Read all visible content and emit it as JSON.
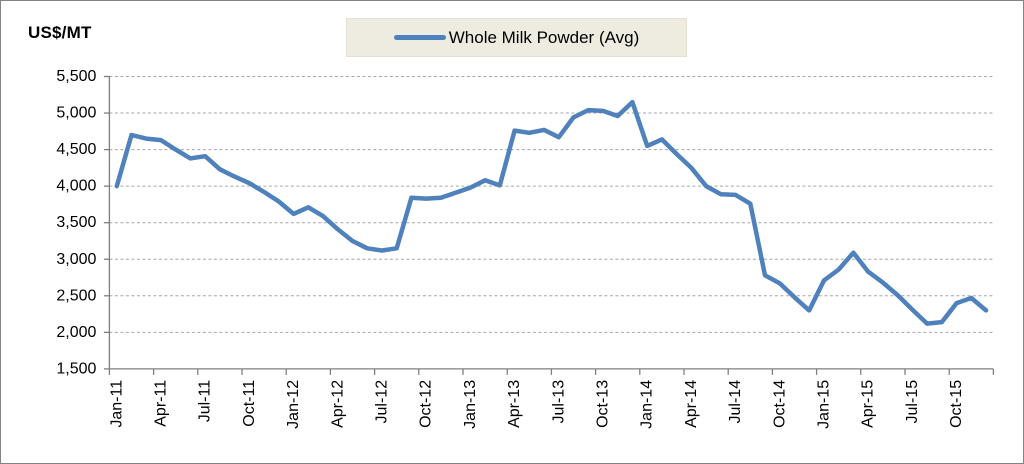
{
  "header": {
    "units_label": "US$/MT"
  },
  "legend": {
    "label": "Whole Milk Powder (Avg)"
  },
  "colors": {
    "series_line": "#4f81bd",
    "legend_bg": "#eeece1",
    "gridline": "#a6a6a6",
    "axis": "#7f7f7f",
    "text": "#000000",
    "frame_border": "#848484"
  },
  "chart_data": {
    "type": "line",
    "title": "",
    "ylabel": "US$/MT",
    "xlabel": "",
    "grid": "horizontal-dashed",
    "legend_position": "top-center",
    "categories": [
      "Jan-11",
      "Feb-11",
      "Mar-11",
      "Apr-11",
      "May-11",
      "Jun-11",
      "Jul-11",
      "Aug-11",
      "Sep-11",
      "Oct-11",
      "Nov-11",
      "Dec-11",
      "Jan-12",
      "Feb-12",
      "Mar-12",
      "Apr-12",
      "May-12",
      "Jun-12",
      "Jul-12",
      "Aug-12",
      "Sep-12",
      "Oct-12",
      "Nov-12",
      "Dec-12",
      "Jan-13",
      "Feb-13",
      "Mar-13",
      "Apr-13",
      "May-13",
      "Jun-13",
      "Jul-13",
      "Aug-13",
      "Sep-13",
      "Oct-13",
      "Nov-13",
      "Dec-13",
      "Jan-14",
      "Feb-14",
      "Mar-14",
      "Apr-14",
      "May-14",
      "Jun-14",
      "Jul-14",
      "Aug-14",
      "Sep-14",
      "Oct-14",
      "Nov-14",
      "Dec-14",
      "Jan-15",
      "Feb-15",
      "Mar-15",
      "Apr-15",
      "May-15",
      "Jun-15",
      "Jul-15",
      "Aug-15",
      "Sep-15",
      "Oct-15",
      "Nov-15",
      "Dec-15"
    ],
    "series": [
      {
        "name": "Whole Milk Powder (Avg)",
        "color": "#4f81bd",
        "values": [
          4000,
          4700,
          4650,
          4630,
          4500,
          4380,
          4410,
          4230,
          4130,
          4040,
          3920,
          3790,
          3620,
          3710,
          3590,
          3410,
          3250,
          3150,
          3120,
          3150,
          3840,
          3830,
          3840,
          3910,
          3980,
          4080,
          4010,
          4760,
          4730,
          4770,
          4670,
          4940,
          5040,
          5030,
          4960,
          5150,
          4550,
          4640,
          4440,
          4250,
          4000,
          3890,
          3880,
          3760,
          2780,
          2670,
          2480,
          2300,
          2710,
          2860,
          3090,
          2830,
          2680,
          2510,
          2310,
          2120,
          2140,
          2400,
          2470,
          2300
        ]
      }
    ],
    "x_tick_labels": [
      "Jan-11",
      "Apr-11",
      "Jul-11",
      "Oct-11",
      "Jan-12",
      "Apr-12",
      "Jul-12",
      "Oct-12",
      "Jan-13",
      "Apr-13",
      "Jul-13",
      "Oct-13",
      "Jan-14",
      "Apr-14",
      "Jul-14",
      "Oct-14",
      "Jan-15",
      "Apr-15",
      "Jul-15",
      "Oct-15"
    ],
    "x_label_interval": 3,
    "y_axis": {
      "min": 1500,
      "max": 5500,
      "step": 500,
      "tick_labels": [
        "5,500",
        "5,000",
        "4,500",
        "4,000",
        "3,500",
        "3,000",
        "2,500",
        "2,000",
        "1,500"
      ]
    }
  }
}
